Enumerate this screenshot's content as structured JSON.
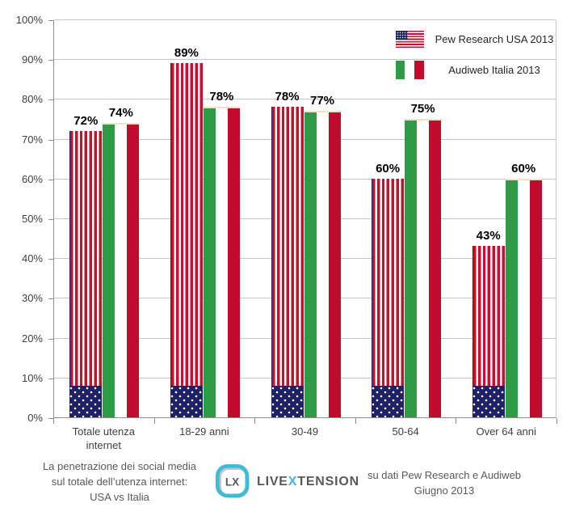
{
  "chart_data": {
    "type": "bar",
    "title": "",
    "categories": [
      "Totale utenza internet",
      "18-29 anni",
      "30-49",
      "50-64",
      "Over 64 anni"
    ],
    "series": [
      {
        "name": "Pew Research USA 2013",
        "flag": "usa",
        "values": [
          72,
          89,
          78,
          60,
          43
        ]
      },
      {
        "name": "Audiweb Italia 2013",
        "flag": "italy",
        "values": [
          74,
          78,
          77,
          75,
          60
        ]
      }
    ],
    "value_suffix": "%",
    "xlabel": "",
    "ylabel": "",
    "ylim": [
      0,
      100
    ],
    "ytick_step": 10,
    "ytick_suffix": "%",
    "grid": true,
    "legend_position": "top-right"
  },
  "footer": {
    "left_note": {
      "line1": "La penetrazione dei social media",
      "line2": "sul totale dell’utenza internet:",
      "line3": "USA vs Italia"
    },
    "source_note": {
      "line1": "su dati Pew Research e Audiweb",
      "line2": "Giugno 2013"
    },
    "logo": {
      "badge_text": "LX",
      "brand_prefix": "LIVE",
      "brand_accent": "X",
      "brand_suffix": "TENSION"
    }
  },
  "colors": {
    "usa_red": "#C8102E",
    "usa_navy": "#1F2168",
    "italy_green": "#2E9B46",
    "italy_red": "#C00B2C",
    "flag_edge_cream": "#F0E2C2",
    "gridline": "#C6C6C6",
    "axis": "#8E8E8E",
    "tick_label": "#404040",
    "value_label": "#000000",
    "note_text": "#595959",
    "logo_cyan": "#3DBBD9",
    "logo_gray": "#58595B"
  }
}
